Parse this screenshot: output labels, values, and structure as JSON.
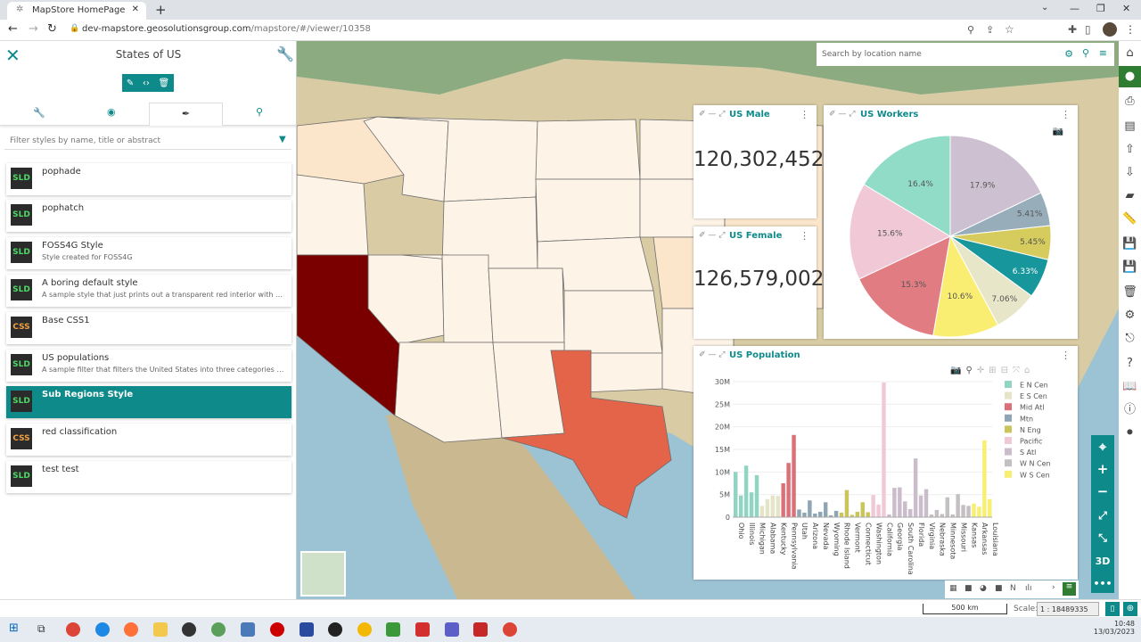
{
  "browser": {
    "tab_title": "MapStore HomePage",
    "url_host": "dev-mapstore.geosolutionsgroup.com",
    "url_path": "/mapstore/#/viewer/10358"
  },
  "panel": {
    "title": "States of US",
    "filter_placeholder": "Filter styles by name, title or abstract",
    "styles": [
      {
        "format": "SLD",
        "title": "pophade",
        "description": ""
      },
      {
        "format": "SLD",
        "title": "pophatch",
        "description": ""
      },
      {
        "format": "SLD",
        "title": "FOSS4G Style",
        "description": "Style created for FOSS4G"
      },
      {
        "format": "SLD",
        "title": "A boring default style",
        "description": "A sample style that just prints out a transparent red interior with a red..."
      },
      {
        "format": "CSS",
        "title": "Base CSS1",
        "description": ""
      },
      {
        "format": "SLD",
        "title": "US populations",
        "description": "A sample filter that filters the United States into three categories of p..."
      },
      {
        "format": "SLD",
        "title": "Sub Regions Style",
        "description": "",
        "selected": true
      },
      {
        "format": "CSS",
        "title": "red classification",
        "description": ""
      },
      {
        "format": "SLD",
        "title": "test test",
        "description": ""
      }
    ]
  },
  "search": {
    "placeholder": "Search by location name"
  },
  "widgets": {
    "male": {
      "title": "US Male",
      "value": "120,302,452"
    },
    "female": {
      "title": "US Female",
      "value": "126,579,002"
    },
    "workers": {
      "title": "US Workers"
    },
    "population": {
      "title": "US Population"
    }
  },
  "chart_data": [
    {
      "type": "pie",
      "title": "US Workers",
      "values": [
        17.9,
        5.41,
        5.45,
        6.33,
        7.06,
        10.6,
        15.3,
        15.6,
        16.4
      ],
      "labels": [
        "17.9%",
        "5.41%",
        "5.45%",
        "6.33%",
        "7.06%",
        "10.6%",
        "15.3%",
        "15.6%",
        "16.4%"
      ],
      "colors": [
        "#cdc0d0",
        "#98adba",
        "#d6cc5e",
        "#17979c",
        "#e8e6c8",
        "#faee72",
        "#e07c82",
        "#f0c8d6",
        "#90dcc6"
      ]
    },
    {
      "type": "bar",
      "title": "US Population",
      "ylim": [
        0,
        30000000
      ],
      "yticks": [
        "0",
        "5M",
        "10M",
        "15M",
        "20M",
        "25M",
        "30M"
      ],
      "legend": {
        "placement": "right",
        "entries": [
          {
            "name": "E N Cen",
            "color": "#8fd5c2"
          },
          {
            "name": "E S Cen",
            "color": "#e6e4c6"
          },
          {
            "name": "Mid Atl",
            "color": "#dc7079"
          },
          {
            "name": "Mtn",
            "color": "#8fa5b3"
          },
          {
            "name": "N Eng",
            "color": "#c9c55a"
          },
          {
            "name": "Pacific",
            "color": "#f1c9d6"
          },
          {
            "name": "S Atl",
            "color": "#cbbccb"
          },
          {
            "name": "W N Cen",
            "color": "#c3bfc3"
          },
          {
            "name": "W S Cen",
            "color": "#f7ef72"
          }
        ]
      },
      "bars": [
        {
          "label": "Ohio",
          "value": 10.0,
          "group": 0
        },
        {
          "label": "",
          "value": 4.8,
          "group": 0
        },
        {
          "label": "Illinois",
          "value": 11.4,
          "group": 0
        },
        {
          "label": "",
          "value": 5.5,
          "group": 0
        },
        {
          "label": "Michigan",
          "value": 9.3,
          "group": 0
        },
        {
          "label": "",
          "value": 2.5,
          "group": 1
        },
        {
          "label": "Alabama",
          "value": 4.0,
          "group": 1
        },
        {
          "label": "",
          "value": 4.8,
          "group": 1
        },
        {
          "label": "Kentucky",
          "value": 4.7,
          "group": 1
        },
        {
          "label": "",
          "value": 7.5,
          "group": 2
        },
        {
          "label": "Pennsylvania",
          "value": 12.0,
          "group": 2
        },
        {
          "label": "",
          "value": 18.2,
          "group": 2
        },
        {
          "label": "Utah",
          "value": 1.7,
          "group": 3
        },
        {
          "label": "",
          "value": 1.0,
          "group": 3
        },
        {
          "label": "Arizona",
          "value": 3.7,
          "group": 3
        },
        {
          "label": "",
          "value": 0.8,
          "group": 3
        },
        {
          "label": "Nevada",
          "value": 1.2,
          "group": 3
        },
        {
          "label": "",
          "value": 3.3,
          "group": 3
        },
        {
          "label": "Wyoming",
          "value": 0.4,
          "group": 3
        },
        {
          "label": "",
          "value": 1.4,
          "group": 3
        },
        {
          "label": "Rhode Island",
          "value": 1.0,
          "group": 4
        },
        {
          "label": "",
          "value": 6.0,
          "group": 4
        },
        {
          "label": "Vermont",
          "value": 0.5,
          "group": 4
        },
        {
          "label": "",
          "value": 1.2,
          "group": 4
        },
        {
          "label": "Connecticut",
          "value": 3.3,
          "group": 4
        },
        {
          "label": "",
          "value": 1.1,
          "group": 4
        },
        {
          "label": "Washington",
          "value": 4.9,
          "group": 5
        },
        {
          "label": "",
          "value": 2.8,
          "group": 5
        },
        {
          "label": "California",
          "value": 29.8,
          "group": 5
        },
        {
          "label": "",
          "value": 0.6,
          "group": 6
        },
        {
          "label": "Georgia",
          "value": 6.5,
          "group": 6
        },
        {
          "label": "",
          "value": 6.6,
          "group": 6
        },
        {
          "label": "South Carolina",
          "value": 3.5,
          "group": 6
        },
        {
          "label": "",
          "value": 1.8,
          "group": 6
        },
        {
          "label": "Florida",
          "value": 13.0,
          "group": 6
        },
        {
          "label": "",
          "value": 4.8,
          "group": 6
        },
        {
          "label": "Virginia",
          "value": 6.2,
          "group": 6
        },
        {
          "label": "",
          "value": 0.6,
          "group": 7
        },
        {
          "label": "Nebraska",
          "value": 1.6,
          "group": 7
        },
        {
          "label": "",
          "value": 0.7,
          "group": 7
        },
        {
          "label": "Minnesota",
          "value": 4.4,
          "group": 7
        },
        {
          "label": "",
          "value": 0.6,
          "group": 7
        },
        {
          "label": "Missouri",
          "value": 5.1,
          "group": 7
        },
        {
          "label": "",
          "value": 2.7,
          "group": 7
        },
        {
          "label": "Kansas",
          "value": 2.5,
          "group": 7
        },
        {
          "label": "",
          "value": 3.0,
          "group": 8
        },
        {
          "label": "Arkansas",
          "value": 2.3,
          "group": 8
        },
        {
          "label": "",
          "value": 17.0,
          "group": 8
        },
        {
          "label": "Louisiana",
          "value": 4.0,
          "group": 8
        }
      ]
    }
  ],
  "footer": {
    "scalebar": "500 km",
    "scale_label": "Scale:",
    "scale_value": "1 : 18489335"
  },
  "taskbar": {
    "time": "10:48",
    "date": "13/03/2023"
  },
  "colors": {
    "accent": "#0e8a8a",
    "california": "#7a0000",
    "texas": "#e4644a"
  }
}
